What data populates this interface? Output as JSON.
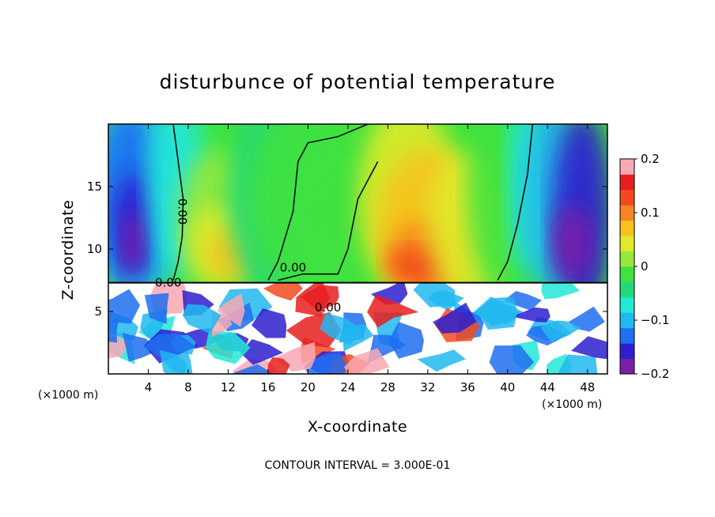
{
  "chart_data": {
    "type": "heatmap",
    "title": "disturbunce of potential temperature",
    "xlabel": "X-coordinate",
    "ylabel": "Z-coordinate",
    "x_unit_left": "(×1000 m)",
    "x_unit_right": "(×1000 m)",
    "xlim": [
      0,
      50
    ],
    "ylim": [
      0,
      20
    ],
    "x_ticks": [
      4,
      8,
      12,
      16,
      20,
      24,
      28,
      32,
      36,
      40,
      44,
      48
    ],
    "y_ticks": [
      5,
      10,
      15
    ],
    "colorbar": {
      "range": [
        -0.2,
        0.2
      ],
      "tick_values": [
        0.2,
        0.1,
        0,
        -0.1,
        -0.2
      ],
      "tick_labels": [
        "0.2",
        "0.1",
        "0",
        "−0.1",
        "−0.2"
      ],
      "colors": [
        "#7a1fa8",
        "#2d1fd0",
        "#1f6ff0",
        "#21b8f0",
        "#22e8d8",
        "#22d87c",
        "#3fe23f",
        "#96e83a",
        "#e0ea2a",
        "#f8c21e",
        "#f7841e",
        "#f24a1e",
        "#e81e1e",
        "#f8a8b4"
      ]
    },
    "contour_labels": [
      "0.00",
      "0.00",
      "0.00",
      "0.00"
    ],
    "contour_interval": "CONTOUR INTERVAL = 3.000E-01"
  }
}
